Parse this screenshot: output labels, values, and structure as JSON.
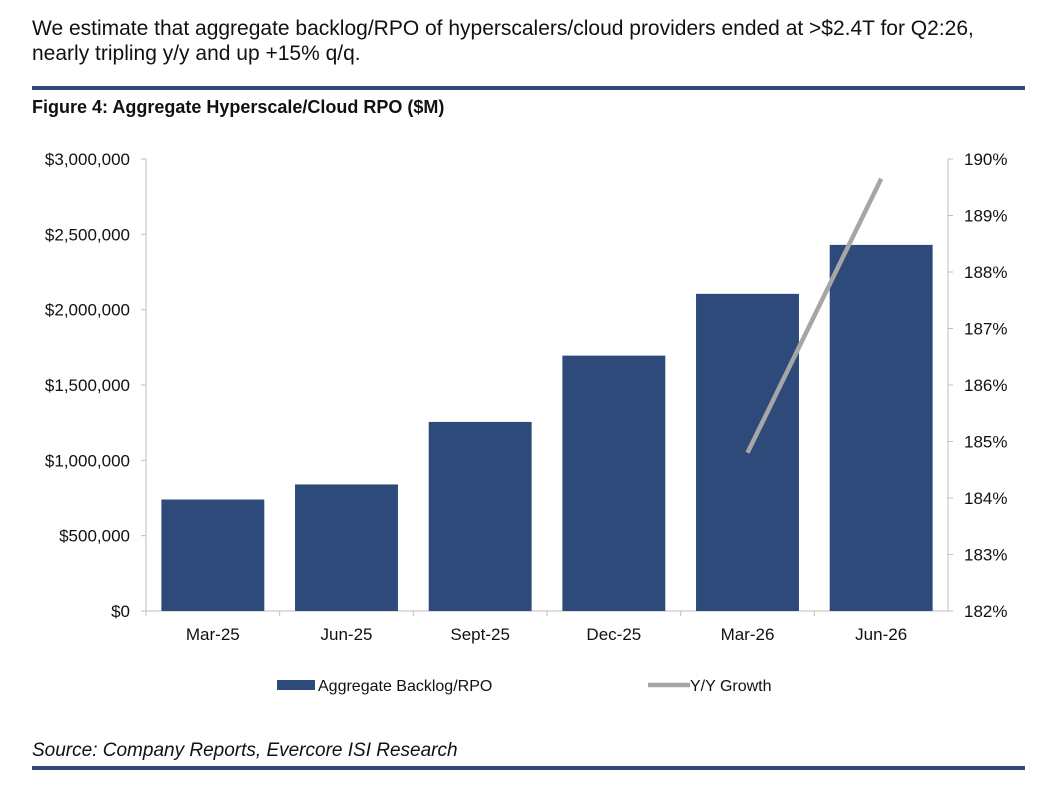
{
  "headline": "We estimate that aggregate backlog/RPO of hyperscalers/cloud providers ended at >$2.4T for Q2:26, nearly tripling y/y and up +15% q/q.",
  "figure_title": "Figure 4: Aggregate Hyperscale/Cloud RPO ($M)",
  "source": "Source: Company Reports, Evercore ISI Research",
  "colors": {
    "bar": "#2d4a7a",
    "line": "#a6a6a6",
    "rule": "#2d4a7a",
    "axis": "#bfbfbf"
  },
  "chart_data": {
    "type": "bar",
    "title": "Figure 4: Aggregate Hyperscale/Cloud RPO ($M)",
    "categories": [
      "Mar-25",
      "Jun-25",
      "Sept-25",
      "Dec-25",
      "Mar-26",
      "Jun-26"
    ],
    "series": [
      {
        "name": "Aggregate Backlog/RPO",
        "type": "bar",
        "axis": "left",
        "values": [
          740000,
          840000,
          1255000,
          1695000,
          2105000,
          2430000
        ]
      },
      {
        "name": "Y/Y Growth",
        "type": "line",
        "axis": "right",
        "values": [
          null,
          null,
          null,
          null,
          184.8,
          189.65
        ]
      }
    ],
    "left_axis": {
      "ylim": [
        0,
        3000000
      ],
      "ticks": [
        0,
        500000,
        1000000,
        1500000,
        2000000,
        2500000,
        3000000
      ],
      "tick_labels": [
        "$0",
        "$500,000",
        "$1,000,000",
        "$1,500,000",
        "$2,000,000",
        "$2,500,000",
        "$3,000,000"
      ]
    },
    "right_axis": {
      "ylim": [
        182,
        190
      ],
      "ticks": [
        182,
        183,
        184,
        185,
        186,
        187,
        188,
        189,
        190
      ],
      "tick_labels": [
        "182%",
        "183%",
        "184%",
        "185%",
        "186%",
        "187%",
        "188%",
        "189%",
        "190%"
      ]
    },
    "legend": {
      "position": "bottom"
    },
    "grid": false
  }
}
